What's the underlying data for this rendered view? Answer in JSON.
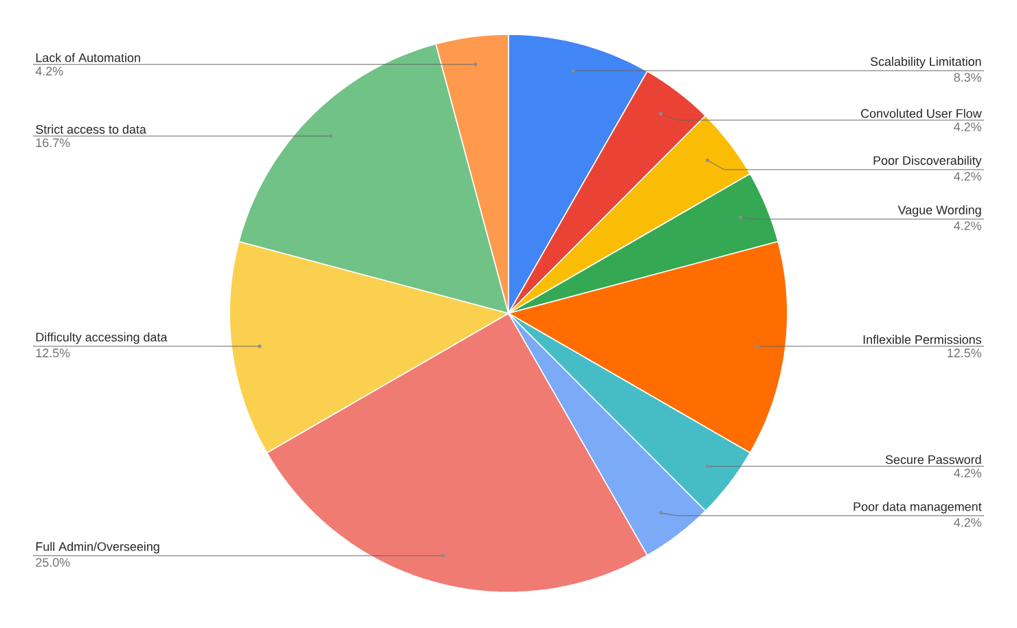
{
  "chart_data": {
    "type": "pie",
    "categories": [
      "Scalability Limitation",
      "Convoluted User Flow",
      "Poor Discoverability",
      "Vague Wording",
      "Inflexible Permissions",
      "Secure Password",
      "Poor data management",
      "Full Admin/Overseeing",
      "Difficulty accessing data",
      "Strict access to data",
      "Lack of Automation"
    ],
    "values": [
      8.3,
      4.2,
      4.2,
      4.2,
      12.5,
      4.2,
      4.2,
      25.0,
      12.5,
      16.7,
      4.2
    ],
    "value_labels": [
      "8.3%",
      "4.2%",
      "4.2%",
      "4.2%",
      "12.5%",
      "4.2%",
      "4.2%",
      "25.0%",
      "12.5%",
      "16.7%",
      "4.2%"
    ],
    "colors": [
      "#4285f4",
      "#ea4335",
      "#fbbc04",
      "#34a853",
      "#ff6d01",
      "#46bdc6",
      "#7baaf7",
      "#f07b72",
      "#fcd04f",
      "#71c287",
      "#ff994d"
    ]
  }
}
